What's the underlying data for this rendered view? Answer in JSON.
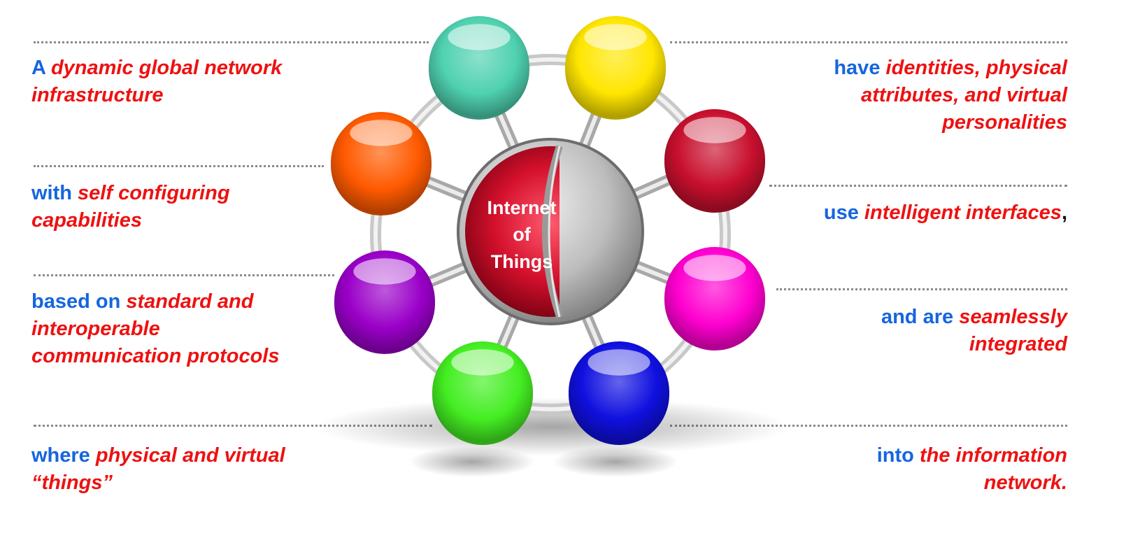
{
  "hub": {
    "lines": [
      "Internet",
      "of",
      "Things"
    ]
  },
  "colors": {
    "blue_text": "#1565e0",
    "red_text": "#ee1111",
    "accent_black": "#111111"
  },
  "spheres": [
    {
      "name": "teal-sphere",
      "color": "#4fd1b0"
    },
    {
      "name": "yellow-sphere",
      "color": "#ffe600"
    },
    {
      "name": "red-sphere",
      "color": "#c8102e"
    },
    {
      "name": "magenta-sphere",
      "color": "#ff00d0"
    },
    {
      "name": "blue-sphere",
      "color": "#1010e0"
    },
    {
      "name": "green-sphere",
      "color": "#44ee22"
    },
    {
      "name": "purple-sphere",
      "color": "#9a00c8"
    },
    {
      "name": "orange-sphere",
      "color": "#ff5a00"
    }
  ],
  "left": [
    {
      "lines": [
        [
          {
            "text": "A ",
            "style": "b"
          },
          {
            "text": "dynamic global network",
            "style": "r"
          }
        ],
        [
          {
            "text": "infrastructure",
            "style": "r"
          }
        ]
      ]
    },
    {
      "lines": [
        [
          {
            "text": "with ",
            "style": "b"
          },
          {
            "text": "self configuring",
            "style": "r"
          }
        ],
        [
          {
            "text": "capabilities",
            "style": "r"
          }
        ]
      ]
    },
    {
      "lines": [
        [
          {
            "text": "based on ",
            "style": "b"
          },
          {
            "text": "standard and",
            "style": "r"
          }
        ],
        [
          {
            "text": "interoperable",
            "style": "r"
          }
        ],
        [
          {
            "text": "communication protocols",
            "style": "r"
          }
        ]
      ]
    },
    {
      "lines": [
        [
          {
            "text": "where ",
            "style": "b"
          },
          {
            "text": "physical and virtual",
            "style": "r"
          }
        ],
        [
          {
            "text": "“things”",
            "style": "r"
          }
        ]
      ]
    }
  ],
  "right": [
    {
      "lines": [
        [
          {
            "text": "have ",
            "style": "b"
          },
          {
            "text": "identities, physical",
            "style": "r"
          }
        ],
        [
          {
            "text": "attributes, and virtual",
            "style": "r"
          }
        ],
        [
          {
            "text": "personalities",
            "style": "r"
          }
        ]
      ]
    },
    {
      "lines": [
        [
          {
            "text": "use ",
            "style": "b"
          },
          {
            "text": "intelligent interfaces",
            "style": "r"
          },
          {
            "text": ",",
            "style": "k"
          }
        ]
      ]
    },
    {
      "lines": [
        [
          {
            "text": "and are ",
            "style": "b"
          },
          {
            "text": "seamlessly",
            "style": "r"
          }
        ],
        [
          {
            "text": "integrated",
            "style": "r"
          }
        ]
      ]
    },
    {
      "lines": [
        [
          {
            "text": "into ",
            "style": "b"
          },
          {
            "text": "the information",
            "style": "r"
          }
        ],
        [
          {
            "text": "network.",
            "style": "r"
          }
        ]
      ]
    }
  ]
}
